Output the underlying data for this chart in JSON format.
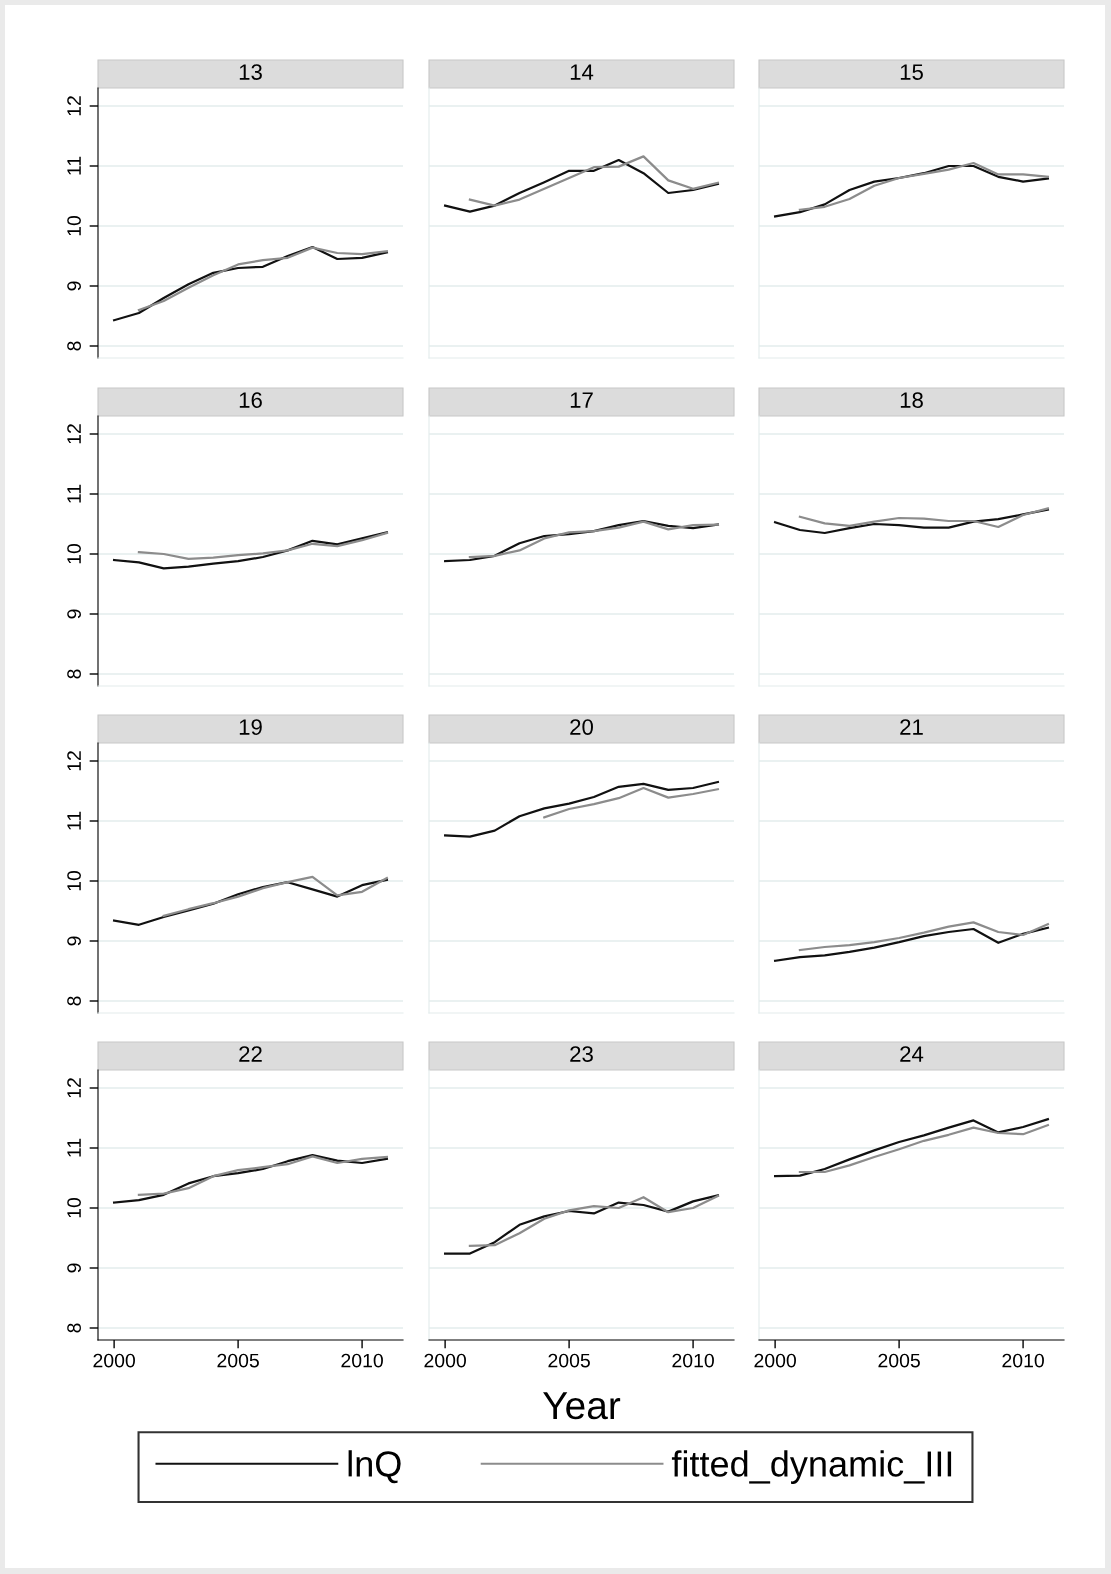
{
  "chart_data": [
    {
      "type": "line",
      "title": "13",
      "x": [
        2000,
        2001,
        2002,
        2003,
        2004,
        2005,
        2006,
        2007,
        2008,
        2009,
        2010,
        2011
      ],
      "xlim": [
        1999.35,
        2011.65
      ],
      "xticks": [
        2000,
        2005,
        2010
      ],
      "ylim": [
        7.8,
        12.3
      ],
      "yticks": [
        8,
        9,
        10,
        11,
        12
      ],
      "grid": "y",
      "tick_labels": "y",
      "series": [
        {
          "color": "#111111",
          "values": [
            8.43,
            8.55,
            8.8,
            9.03,
            9.22,
            9.3,
            9.32,
            9.5,
            9.65,
            9.45,
            9.47,
            9.56
          ]
        },
        {
          "color": "#8c8c8c",
          "values": [
            null,
            8.6,
            8.75,
            8.97,
            9.18,
            9.36,
            9.43,
            9.47,
            9.64,
            9.55,
            9.53,
            9.58
          ]
        }
      ]
    },
    {
      "type": "line",
      "title": "14",
      "x": [
        2000,
        2001,
        2002,
        2003,
        2004,
        2005,
        2006,
        2007,
        2008,
        2009,
        2010,
        2011
      ],
      "xlim": [
        1999.35,
        2011.65
      ],
      "xticks": [
        2000,
        2005,
        2010
      ],
      "ylim": [
        7.8,
        12.3
      ],
      "yticks": [
        8,
        9,
        10,
        11,
        12
      ],
      "grid": "y",
      "tick_labels": false,
      "series": [
        {
          "color": "#111111",
          "values": [
            10.34,
            10.24,
            10.34,
            10.55,
            10.73,
            10.92,
            10.92,
            11.1,
            10.88,
            10.55,
            10.6,
            10.7
          ]
        },
        {
          "color": "#8c8c8c",
          "values": [
            null,
            10.44,
            10.34,
            10.44,
            10.62,
            10.8,
            10.98,
            10.99,
            11.16,
            10.76,
            10.62,
            10.72
          ]
        }
      ]
    },
    {
      "type": "line",
      "title": "15",
      "x": [
        2000,
        2001,
        2002,
        2003,
        2004,
        2005,
        2006,
        2007,
        2008,
        2009,
        2010,
        2011
      ],
      "xlim": [
        1999.35,
        2011.65
      ],
      "xticks": [
        2000,
        2005,
        2010
      ],
      "ylim": [
        7.8,
        12.3
      ],
      "yticks": [
        8,
        9,
        10,
        11,
        12
      ],
      "grid": "y",
      "tick_labels": false,
      "series": [
        {
          "color": "#111111",
          "values": [
            10.16,
            10.23,
            10.36,
            10.6,
            10.74,
            10.8,
            10.88,
            11.0,
            11.0,
            10.82,
            10.74,
            10.79
          ]
        },
        {
          "color": "#8c8c8c",
          "values": [
            null,
            10.27,
            10.32,
            10.45,
            10.67,
            10.8,
            10.87,
            10.94,
            11.05,
            10.86,
            10.86,
            10.82
          ]
        }
      ]
    },
    {
      "type": "line",
      "title": "16",
      "x": [
        2000,
        2001,
        2002,
        2003,
        2004,
        2005,
        2006,
        2007,
        2008,
        2009,
        2010,
        2011
      ],
      "xlim": [
        1999.35,
        2011.65
      ],
      "xticks": [
        2000,
        2005,
        2010
      ],
      "ylim": [
        7.8,
        12.3
      ],
      "yticks": [
        8,
        9,
        10,
        11,
        12
      ],
      "grid": "y",
      "tick_labels": "y",
      "series": [
        {
          "color": "#111111",
          "values": [
            9.9,
            9.86,
            9.76,
            9.79,
            9.84,
            9.88,
            9.95,
            10.06,
            10.22,
            10.16,
            10.26,
            10.36
          ]
        },
        {
          "color": "#8c8c8c",
          "values": [
            null,
            10.03,
            10.0,
            9.92,
            9.94,
            9.98,
            10.01,
            10.06,
            10.17,
            10.13,
            10.23,
            10.35
          ]
        }
      ]
    },
    {
      "type": "line",
      "title": "17",
      "x": [
        2000,
        2001,
        2002,
        2003,
        2004,
        2005,
        2006,
        2007,
        2008,
        2009,
        2010,
        2011
      ],
      "xlim": [
        1999.35,
        2011.65
      ],
      "xticks": [
        2000,
        2005,
        2010
      ],
      "ylim": [
        7.8,
        12.3
      ],
      "yticks": [
        8,
        9,
        10,
        11,
        12
      ],
      "grid": "y",
      "tick_labels": false,
      "series": [
        {
          "color": "#111111",
          "values": [
            9.88,
            9.9,
            9.97,
            10.18,
            10.3,
            10.33,
            10.38,
            10.48,
            10.55,
            10.47,
            10.43,
            10.49
          ]
        },
        {
          "color": "#8c8c8c",
          "values": [
            null,
            9.95,
            9.97,
            10.06,
            10.26,
            10.36,
            10.38,
            10.44,
            10.54,
            10.41,
            10.48,
            10.49
          ]
        }
      ]
    },
    {
      "type": "line",
      "title": "18",
      "x": [
        2000,
        2001,
        2002,
        2003,
        2004,
        2005,
        2006,
        2007,
        2008,
        2009,
        2010,
        2011
      ],
      "xlim": [
        1999.35,
        2011.65
      ],
      "xticks": [
        2000,
        2005,
        2010
      ],
      "ylim": [
        7.8,
        12.3
      ],
      "yticks": [
        8,
        9,
        10,
        11,
        12
      ],
      "grid": "y",
      "tick_labels": false,
      "series": [
        {
          "color": "#111111",
          "values": [
            10.53,
            10.4,
            10.35,
            10.43,
            10.5,
            10.48,
            10.44,
            10.44,
            10.54,
            10.58,
            10.66,
            10.74
          ]
        },
        {
          "color": "#8c8c8c",
          "values": [
            null,
            10.62,
            10.51,
            10.47,
            10.54,
            10.6,
            10.59,
            10.55,
            10.55,
            10.45,
            10.65,
            10.76
          ]
        }
      ]
    },
    {
      "type": "line",
      "title": "19",
      "x": [
        2000,
        2001,
        2002,
        2003,
        2004,
        2005,
        2006,
        2007,
        2008,
        2009,
        2010,
        2011
      ],
      "xlim": [
        1999.35,
        2011.65
      ],
      "xticks": [
        2000,
        2005,
        2010
      ],
      "ylim": [
        7.8,
        12.3
      ],
      "yticks": [
        8,
        9,
        10,
        11,
        12
      ],
      "grid": "y",
      "tick_labels": "y",
      "series": [
        {
          "color": "#111111",
          "values": [
            9.34,
            9.27,
            9.4,
            9.51,
            9.62,
            9.78,
            9.9,
            9.98,
            9.86,
            9.74,
            9.93,
            10.02
          ]
        },
        {
          "color": "#8c8c8c",
          "values": [
            null,
            null,
            9.42,
            9.53,
            9.63,
            9.74,
            9.88,
            9.98,
            10.07,
            9.76,
            9.82,
            10.05
          ]
        }
      ]
    },
    {
      "type": "line",
      "title": "20",
      "x": [
        2000,
        2001,
        2002,
        2003,
        2004,
        2005,
        2006,
        2007,
        2008,
        2009,
        2010,
        2011
      ],
      "xlim": [
        1999.35,
        2011.65
      ],
      "xticks": [
        2000,
        2005,
        2010
      ],
      "ylim": [
        7.8,
        12.3
      ],
      "yticks": [
        8,
        9,
        10,
        11,
        12
      ],
      "grid": "y",
      "tick_labels": false,
      "series": [
        {
          "color": "#111111",
          "values": [
            10.76,
            10.74,
            10.84,
            11.08,
            11.21,
            11.29,
            11.4,
            11.57,
            11.62,
            11.52,
            11.55,
            11.65
          ]
        },
        {
          "color": "#8c8c8c",
          "values": [
            null,
            null,
            null,
            null,
            11.06,
            11.2,
            11.28,
            11.38,
            11.55,
            11.39,
            11.45,
            11.53
          ]
        }
      ]
    },
    {
      "type": "line",
      "title": "21",
      "x": [
        2000,
        2001,
        2002,
        2003,
        2004,
        2005,
        2006,
        2007,
        2008,
        2009,
        2010,
        2011
      ],
      "xlim": [
        1999.35,
        2011.65
      ],
      "xticks": [
        2000,
        2005,
        2010
      ],
      "ylim": [
        7.8,
        12.3
      ],
      "yticks": [
        8,
        9,
        10,
        11,
        12
      ],
      "grid": "y",
      "tick_labels": false,
      "series": [
        {
          "color": "#111111",
          "values": [
            8.67,
            8.73,
            8.76,
            8.82,
            8.89,
            8.98,
            9.08,
            9.15,
            9.2,
            8.97,
            9.12,
            9.22
          ]
        },
        {
          "color": "#8c8c8c",
          "values": [
            null,
            8.85,
            8.9,
            8.93,
            8.98,
            9.05,
            9.14,
            9.24,
            9.31,
            9.15,
            9.1,
            9.28
          ]
        }
      ]
    },
    {
      "type": "line",
      "title": "22",
      "x": [
        2000,
        2001,
        2002,
        2003,
        2004,
        2005,
        2006,
        2007,
        2008,
        2009,
        2010,
        2011
      ],
      "xlim": [
        1999.35,
        2011.65
      ],
      "xticks": [
        2000,
        2005,
        2010
      ],
      "ylim": [
        7.8,
        12.3
      ],
      "yticks": [
        8,
        9,
        10,
        11,
        12
      ],
      "grid": "y",
      "series": [
        {
          "color": "#111111",
          "values": [
            10.09,
            10.13,
            10.22,
            10.41,
            10.53,
            10.58,
            10.65,
            10.78,
            10.88,
            10.79,
            10.75,
            10.82
          ]
        },
        {
          "color": "#8c8c8c",
          "values": [
            null,
            10.22,
            10.24,
            10.33,
            10.53,
            10.63,
            10.68,
            10.73,
            10.86,
            10.75,
            10.82,
            10.85
          ]
        }
      ]
    },
    {
      "type": "line",
      "title": "23",
      "xlabel": "Year",
      "x": [
        2000,
        2001,
        2002,
        2003,
        2004,
        2005,
        2006,
        2007,
        2008,
        2009,
        2010,
        2011
      ],
      "xlim": [
        1999.35,
        2011.65
      ],
      "xticks": [
        2000,
        2005,
        2010
      ],
      "ylim": [
        7.8,
        12.3
      ],
      "yticks": [
        8,
        9,
        10,
        11,
        12
      ],
      "grid": "y",
      "tick_labels": "x",
      "series": [
        {
          "color": "#111111",
          "values": [
            9.24,
            9.24,
            9.43,
            9.72,
            9.86,
            9.95,
            9.91,
            10.09,
            10.05,
            9.94,
            10.11,
            10.21
          ]
        },
        {
          "color": "#8c8c8c",
          "values": [
            null,
            9.37,
            9.38,
            9.58,
            9.82,
            9.96,
            10.03,
            10.0,
            10.18,
            9.93,
            10.0,
            10.2
          ]
        }
      ]
    },
    {
      "type": "line",
      "title": "24",
      "x": [
        2000,
        2001,
        2002,
        2003,
        2004,
        2005,
        2006,
        2007,
        2008,
        2009,
        2010,
        2011
      ],
      "xlim": [
        1999.35,
        2011.65
      ],
      "xticks": [
        2000,
        2005,
        2010
      ],
      "ylim": [
        7.8,
        12.3
      ],
      "yticks": [
        8,
        9,
        10,
        11,
        12
      ],
      "grid": "y",
      "tick_labels": "x",
      "legend": "bottom",
      "series": [
        {
          "name": "lnQ",
          "color": "#111111",
          "values": [
            10.53,
            10.54,
            10.65,
            10.81,
            10.96,
            11.1,
            11.21,
            11.34,
            11.46,
            11.26,
            11.35,
            11.48
          ]
        },
        {
          "name": "fitted_dynamic_III",
          "color": "#8c8c8c",
          "values": [
            null,
            10.6,
            10.6,
            10.71,
            10.85,
            10.98,
            11.12,
            11.22,
            11.34,
            11.25,
            11.23,
            11.38
          ]
        }
      ]
    }
  ]
}
